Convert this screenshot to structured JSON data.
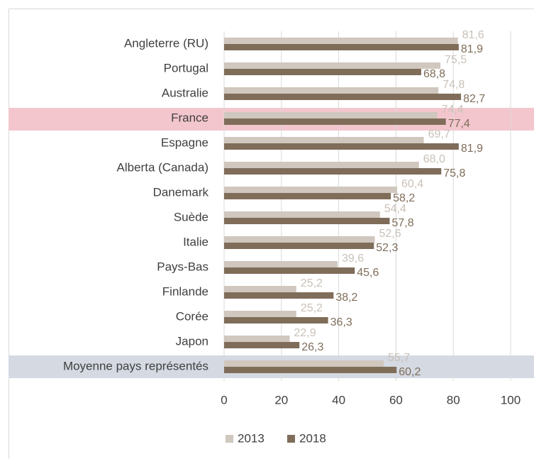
{
  "chart_data": {
    "type": "bar",
    "orientation": "horizontal",
    "categories": [
      "Angleterre (RU)",
      "Portugal",
      "Australie",
      "France",
      "Espagne",
      "Alberta (Canada)",
      "Danemark",
      "Suède",
      "Italie",
      "Pays-Bas",
      "Finlande",
      "Corée",
      "Japon",
      "Moyenne pays représentés"
    ],
    "series": [
      {
        "name": "2013",
        "color": "#d0c7be",
        "values": [
          81.6,
          75.5,
          74.8,
          74.4,
          69.7,
          68.0,
          60.4,
          54.4,
          52.6,
          39.6,
          25.2,
          25.2,
          22.9,
          55.7
        ],
        "value_labels": [
          "81,6",
          "75,5",
          "74,8",
          "74,4",
          "69,7",
          "68,0",
          "60,4",
          "54,4",
          "52,6",
          "39,6",
          "25,2",
          "25,2",
          "22,9",
          "55,7"
        ]
      },
      {
        "name": "2018",
        "color": "#7f6d5a",
        "values": [
          81.9,
          68.8,
          82.7,
          77.4,
          81.9,
          75.8,
          58.2,
          57.8,
          52.3,
          45.6,
          38.2,
          36.3,
          26.3,
          60.2
        ],
        "value_labels": [
          "81,9",
          "68,8",
          "82,7",
          "77,4",
          "81,9",
          "75,8",
          "58,2",
          "57,8",
          "52,3",
          "45,6",
          "38,2",
          "36,3",
          "26,3",
          "60,2"
        ]
      }
    ],
    "xlim": [
      0,
      100
    ],
    "xticks": [
      0,
      20,
      40,
      60,
      80,
      100
    ],
    "grid": true,
    "legend": "bottom"
  }
}
